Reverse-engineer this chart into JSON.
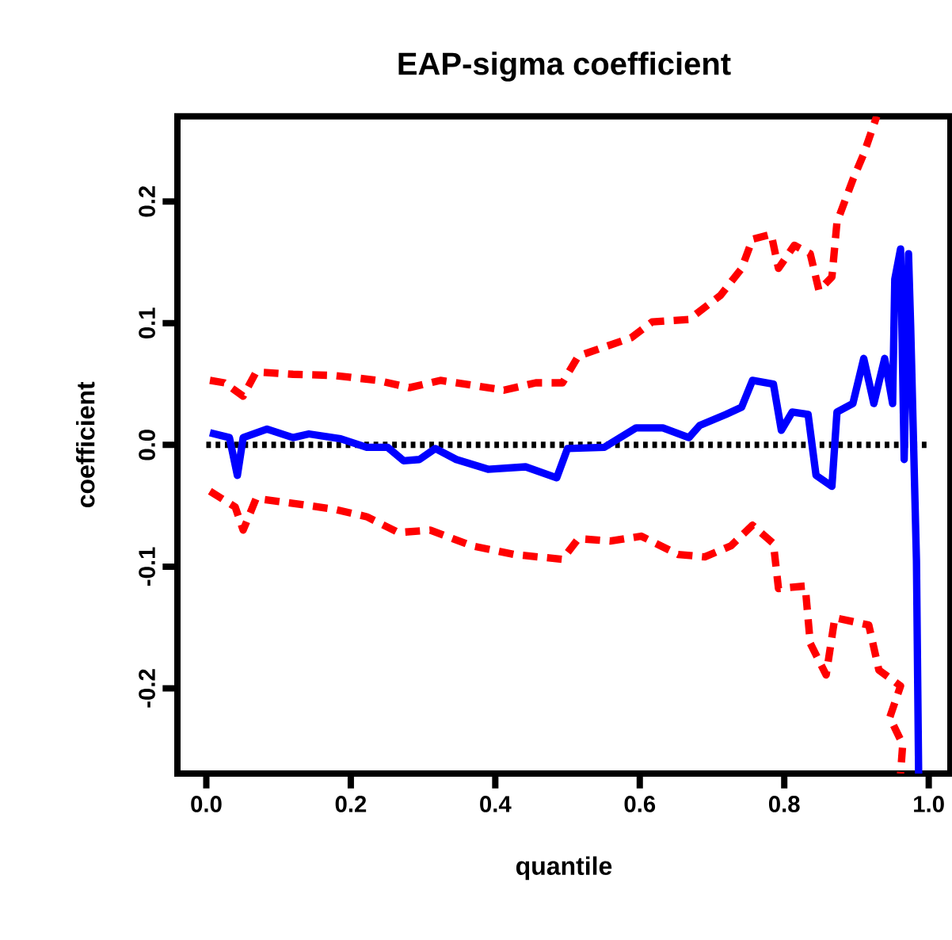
{
  "chart_data": {
    "type": "line",
    "title": "EAP-sigma coefficient",
    "xlabel": "quantile",
    "ylabel": "coefficient",
    "xlim": [
      -0.04,
      1.03
    ],
    "ylim": [
      -0.27,
      0.27
    ],
    "xticks": [
      {
        "value": 0,
        "label": "0.0"
      },
      0.2,
      0.4,
      0.6,
      0.8,
      {
        "value": 1,
        "label": "1.0"
      }
    ],
    "yticks": [
      -0.2,
      -0.1,
      {
        "value": 0,
        "label": "0.0"
      },
      0.1,
      0.2
    ],
    "grid": false,
    "marker": "none",
    "ref_lines": [
      {
        "axis": "y",
        "value": 0,
        "color": "#000000",
        "line_style": "dotted"
      }
    ],
    "series": [
      {
        "color": "#0000ff",
        "line_style": "solid",
        "x": [
          0.005,
          0.032,
          0.043,
          0.051,
          0.084,
          0.12,
          0.142,
          0.186,
          0.222,
          0.251,
          0.273,
          0.295,
          0.317,
          0.346,
          0.39,
          0.442,
          0.485,
          0.5,
          0.551,
          0.595,
          0.632,
          0.668,
          0.683,
          0.719,
          0.741,
          0.756,
          0.785,
          0.796,
          0.811,
          0.833,
          0.844,
          0.866,
          0.873,
          0.895,
          0.91,
          0.924,
          0.939,
          0.95,
          0.953,
          0.961,
          0.966,
          0.972,
          0.975,
          0.983,
          0.986
        ],
        "values": [
          0.01,
          0.006,
          -0.025,
          0.006,
          0.013,
          0.006,
          0.009,
          0.005,
          -0.002,
          -0.002,
          -0.013,
          -0.012,
          -0.003,
          -0.012,
          -0.02,
          -0.018,
          -0.027,
          -0.003,
          -0.002,
          0.014,
          0.014,
          0.006,
          0.016,
          0.025,
          0.031,
          0.053,
          0.05,
          0.012,
          0.027,
          0.025,
          -0.025,
          -0.034,
          0.027,
          0.034,
          0.071,
          0.034,
          0.071,
          0.034,
          0.136,
          0.161,
          -0.012,
          0.157,
          0.097,
          -0.095,
          -0.27
        ]
      },
      {
        "color": "#ff0000",
        "line_style": "dashed",
        "x": [
          0.005,
          0.025,
          0.051,
          0.069,
          0.12,
          0.178,
          0.237,
          0.281,
          0.324,
          0.368,
          0.412,
          0.456,
          0.493,
          0.515,
          0.588,
          0.617,
          0.668,
          0.712,
          0.741,
          0.756,
          0.782,
          0.792,
          0.814,
          0.836,
          0.848,
          0.866,
          0.873,
          0.895,
          0.91,
          0.928
        ],
        "values": [
          0.053,
          0.051,
          0.04,
          0.06,
          0.058,
          0.057,
          0.053,
          0.047,
          0.053,
          0.049,
          0.045,
          0.051,
          0.051,
          0.073,
          0.088,
          0.101,
          0.103,
          0.123,
          0.145,
          0.169,
          0.173,
          0.145,
          0.164,
          0.157,
          0.127,
          0.138,
          0.183,
          0.218,
          0.239,
          0.27
        ]
      },
      {
        "color": "#ff0000",
        "line_style": "dashed",
        "x": [
          0.005,
          0.04,
          0.051,
          0.069,
          0.12,
          0.178,
          0.222,
          0.266,
          0.31,
          0.368,
          0.426,
          0.493,
          0.515,
          0.559,
          0.602,
          0.653,
          0.69,
          0.726,
          0.756,
          0.785,
          0.792,
          0.829,
          0.836,
          0.858,
          0.87,
          0.917,
          0.931,
          0.961,
          0.946,
          0.964,
          0.961
        ],
        "values": [
          -0.038,
          -0.051,
          -0.07,
          -0.044,
          -0.048,
          -0.053,
          -0.059,
          -0.072,
          -0.07,
          -0.083,
          -0.09,
          -0.094,
          -0.077,
          -0.079,
          -0.075,
          -0.09,
          -0.092,
          -0.083,
          -0.066,
          -0.081,
          -0.118,
          -0.116,
          -0.163,
          -0.189,
          -0.142,
          -0.148,
          -0.185,
          -0.198,
          -0.224,
          -0.246,
          -0.27
        ]
      }
    ]
  }
}
